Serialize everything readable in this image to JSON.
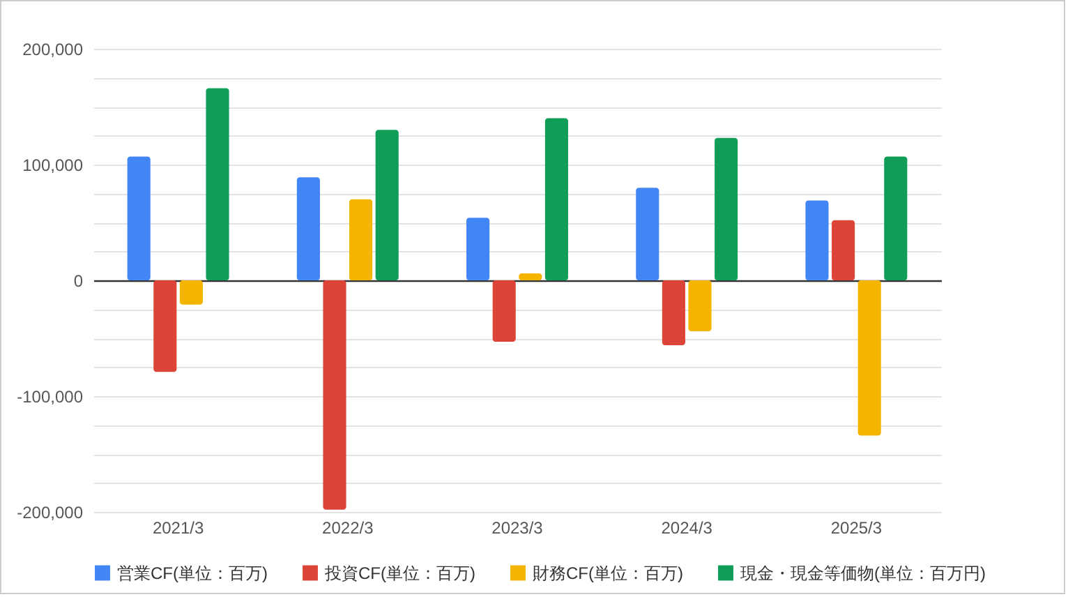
{
  "chart_data": {
    "type": "bar",
    "categories": [
      "2021/3",
      "2022/3",
      "2023/3",
      "2024/3",
      "2025/3"
    ],
    "series": [
      {
        "name": "営業CF(単位：百万)",
        "color": "#4285f4",
        "values": [
          107000,
          89000,
          54000,
          80000,
          69000
        ]
      },
      {
        "name": "投資CF(単位：百万)",
        "color": "#db4437",
        "values": [
          -79000,
          -198000,
          -53000,
          -56000,
          52000
        ]
      },
      {
        "name": "財務CF(単位：百万)",
        "color": "#f4b400",
        "values": [
          -21000,
          70000,
          6000,
          -44000,
          -134000
        ]
      },
      {
        "name": "現金・現金等価物(単位：百万円)",
        "color": "#0f9d58",
        "values": [
          166000,
          130000,
          140000,
          123000,
          107000
        ]
      }
    ],
    "ylim": [
      -200000,
      200000
    ],
    "yticks": [
      {
        "value": -200000,
        "label": "-200,000"
      },
      {
        "value": -175000,
        "label": null
      },
      {
        "value": -150000,
        "label": null
      },
      {
        "value": -125000,
        "label": null
      },
      {
        "value": -100000,
        "label": "-100,000"
      },
      {
        "value": -75000,
        "label": null
      },
      {
        "value": -50000,
        "label": null
      },
      {
        "value": -25000,
        "label": null
      },
      0,
      {
        "value": 25000,
        "label": null
      },
      {
        "value": 50000,
        "label": null
      },
      {
        "value": 75000,
        "label": null
      },
      {
        "value": 100000,
        "label": "100,000"
      },
      {
        "value": 125000,
        "label": null
      },
      {
        "value": 150000,
        "label": null
      },
      {
        "value": 175000,
        "label": null
      },
      {
        "value": 200000,
        "label": "200,000"
      }
    ],
    "grid": true,
    "legend": "bottom"
  }
}
